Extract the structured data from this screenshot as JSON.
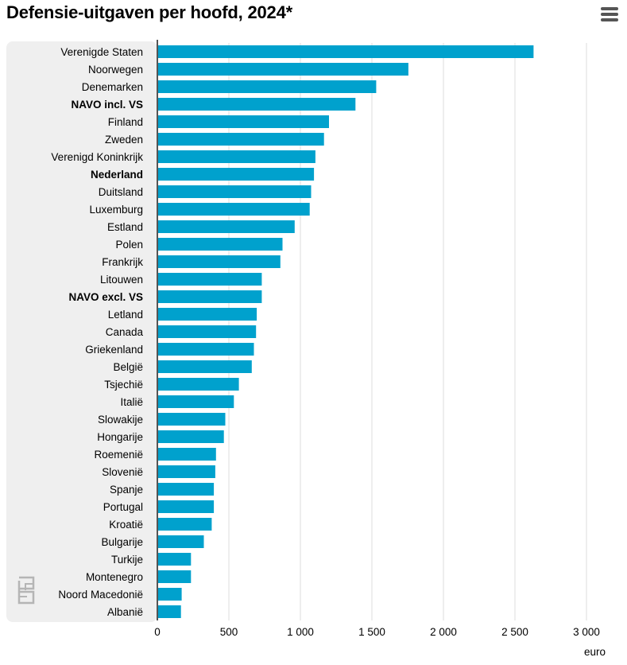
{
  "header": {
    "title": "Defensie-uitgaven per hoofd, 2024*",
    "menu_icon": "hamburger-menu-icon"
  },
  "logo_icon": "cbs-logo-icon",
  "colors": {
    "bar": "#00a1cd",
    "panel": "#efefef",
    "grid": "#dddddd",
    "axis": "#555555"
  },
  "chart_data": {
    "type": "bar",
    "orientation": "horizontal",
    "title": "Defensie-uitgaven per hoofd, 2024*",
    "xlabel": "euro",
    "xlim": [
      0,
      3000
    ],
    "xticks": [
      0,
      500,
      1000,
      1500,
      2000,
      2500,
      3000
    ],
    "xtick_labels": [
      "0",
      "500",
      "1 000",
      "1 500",
      "2 000",
      "2 500",
      "3 000"
    ],
    "grid": true,
    "categories": [
      "Verenigde Staten",
      "Noorwegen",
      "Denemarken",
      "NAVO incl. VS",
      "Finland",
      "Zweden",
      "Verenigd Koninkrijk",
      "Nederland",
      "Duitsland",
      "Luxemburg",
      "Estland",
      "Polen",
      "Frankrijk",
      "Litouwen",
      "NAVO excl. VS",
      "Letland",
      "Canada",
      "Griekenland",
      "België",
      "Tsjechië",
      "Italië",
      "Slowakije",
      "Hongarije",
      "Roemenië",
      "Slovenië",
      "Spanje",
      "Portugal",
      "Kroatië",
      "Bulgarije",
      "Turkije",
      "Montenegro",
      "Noord Macedonië",
      "Albanië"
    ],
    "bold_categories": [
      "NAVO incl. VS",
      "Nederland",
      "NAVO excl. VS"
    ],
    "values": [
      2630,
      1755,
      1530,
      1385,
      1200,
      1165,
      1105,
      1095,
      1075,
      1065,
      960,
      875,
      860,
      730,
      730,
      695,
      690,
      675,
      660,
      570,
      535,
      475,
      465,
      410,
      405,
      395,
      395,
      380,
      325,
      235,
      235,
      170,
      165
    ]
  }
}
